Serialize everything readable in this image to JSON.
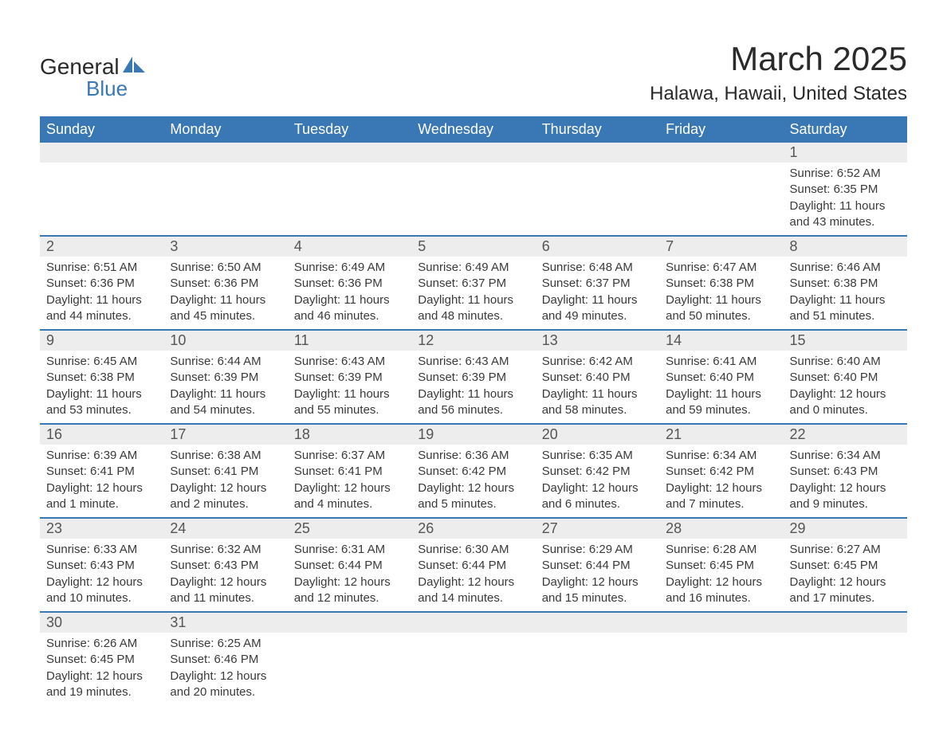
{
  "logo": {
    "word1": "General",
    "word2": "Blue",
    "accent_color": "#3a78b5"
  },
  "title": "March 2025",
  "subtitle": "Halawa, Hawaii, United States",
  "colors": {
    "header_bg": "#3a78b5",
    "header_text": "#ffffff",
    "daynum_bg": "#ededed",
    "text": "#3a3a3a",
    "divider": "#3a78b5",
    "page_bg": "#ffffff"
  },
  "fonts": {
    "title_pt": 42,
    "subtitle_pt": 24,
    "weekday_pt": 18,
    "daynum_pt": 18,
    "body_pt": 15
  },
  "weekdays": [
    "Sunday",
    "Monday",
    "Tuesday",
    "Wednesday",
    "Thursday",
    "Friday",
    "Saturday"
  ],
  "weeks": [
    [
      null,
      null,
      null,
      null,
      null,
      null,
      {
        "n": "1",
        "sr": "6:52 AM",
        "ss": "6:35 PM",
        "dl": "11 hours and 43 minutes."
      }
    ],
    [
      {
        "n": "2",
        "sr": "6:51 AM",
        "ss": "6:36 PM",
        "dl": "11 hours and 44 minutes."
      },
      {
        "n": "3",
        "sr": "6:50 AM",
        "ss": "6:36 PM",
        "dl": "11 hours and 45 minutes."
      },
      {
        "n": "4",
        "sr": "6:49 AM",
        "ss": "6:36 PM",
        "dl": "11 hours and 46 minutes."
      },
      {
        "n": "5",
        "sr": "6:49 AM",
        "ss": "6:37 PM",
        "dl": "11 hours and 48 minutes."
      },
      {
        "n": "6",
        "sr": "6:48 AM",
        "ss": "6:37 PM",
        "dl": "11 hours and 49 minutes."
      },
      {
        "n": "7",
        "sr": "6:47 AM",
        "ss": "6:38 PM",
        "dl": "11 hours and 50 minutes."
      },
      {
        "n": "8",
        "sr": "6:46 AM",
        "ss": "6:38 PM",
        "dl": "11 hours and 51 minutes."
      }
    ],
    [
      {
        "n": "9",
        "sr": "6:45 AM",
        "ss": "6:38 PM",
        "dl": "11 hours and 53 minutes."
      },
      {
        "n": "10",
        "sr": "6:44 AM",
        "ss": "6:39 PM",
        "dl": "11 hours and 54 minutes."
      },
      {
        "n": "11",
        "sr": "6:43 AM",
        "ss": "6:39 PM",
        "dl": "11 hours and 55 minutes."
      },
      {
        "n": "12",
        "sr": "6:43 AM",
        "ss": "6:39 PM",
        "dl": "11 hours and 56 minutes."
      },
      {
        "n": "13",
        "sr": "6:42 AM",
        "ss": "6:40 PM",
        "dl": "11 hours and 58 minutes."
      },
      {
        "n": "14",
        "sr": "6:41 AM",
        "ss": "6:40 PM",
        "dl": "11 hours and 59 minutes."
      },
      {
        "n": "15",
        "sr": "6:40 AM",
        "ss": "6:40 PM",
        "dl": "12 hours and 0 minutes."
      }
    ],
    [
      {
        "n": "16",
        "sr": "6:39 AM",
        "ss": "6:41 PM",
        "dl": "12 hours and 1 minute."
      },
      {
        "n": "17",
        "sr": "6:38 AM",
        "ss": "6:41 PM",
        "dl": "12 hours and 2 minutes."
      },
      {
        "n": "18",
        "sr": "6:37 AM",
        "ss": "6:41 PM",
        "dl": "12 hours and 4 minutes."
      },
      {
        "n": "19",
        "sr": "6:36 AM",
        "ss": "6:42 PM",
        "dl": "12 hours and 5 minutes."
      },
      {
        "n": "20",
        "sr": "6:35 AM",
        "ss": "6:42 PM",
        "dl": "12 hours and 6 minutes."
      },
      {
        "n": "21",
        "sr": "6:34 AM",
        "ss": "6:42 PM",
        "dl": "12 hours and 7 minutes."
      },
      {
        "n": "22",
        "sr": "6:34 AM",
        "ss": "6:43 PM",
        "dl": "12 hours and 9 minutes."
      }
    ],
    [
      {
        "n": "23",
        "sr": "6:33 AM",
        "ss": "6:43 PM",
        "dl": "12 hours and 10 minutes."
      },
      {
        "n": "24",
        "sr": "6:32 AM",
        "ss": "6:43 PM",
        "dl": "12 hours and 11 minutes."
      },
      {
        "n": "25",
        "sr": "6:31 AM",
        "ss": "6:44 PM",
        "dl": "12 hours and 12 minutes."
      },
      {
        "n": "26",
        "sr": "6:30 AM",
        "ss": "6:44 PM",
        "dl": "12 hours and 14 minutes."
      },
      {
        "n": "27",
        "sr": "6:29 AM",
        "ss": "6:44 PM",
        "dl": "12 hours and 15 minutes."
      },
      {
        "n": "28",
        "sr": "6:28 AM",
        "ss": "6:45 PM",
        "dl": "12 hours and 16 minutes."
      },
      {
        "n": "29",
        "sr": "6:27 AM",
        "ss": "6:45 PM",
        "dl": "12 hours and 17 minutes."
      }
    ],
    [
      {
        "n": "30",
        "sr": "6:26 AM",
        "ss": "6:45 PM",
        "dl": "12 hours and 19 minutes."
      },
      {
        "n": "31",
        "sr": "6:25 AM",
        "ss": "6:46 PM",
        "dl": "12 hours and 20 minutes."
      },
      null,
      null,
      null,
      null,
      null
    ]
  ],
  "labels": {
    "sunrise": "Sunrise: ",
    "sunset": "Sunset: ",
    "daylight": "Daylight: "
  }
}
